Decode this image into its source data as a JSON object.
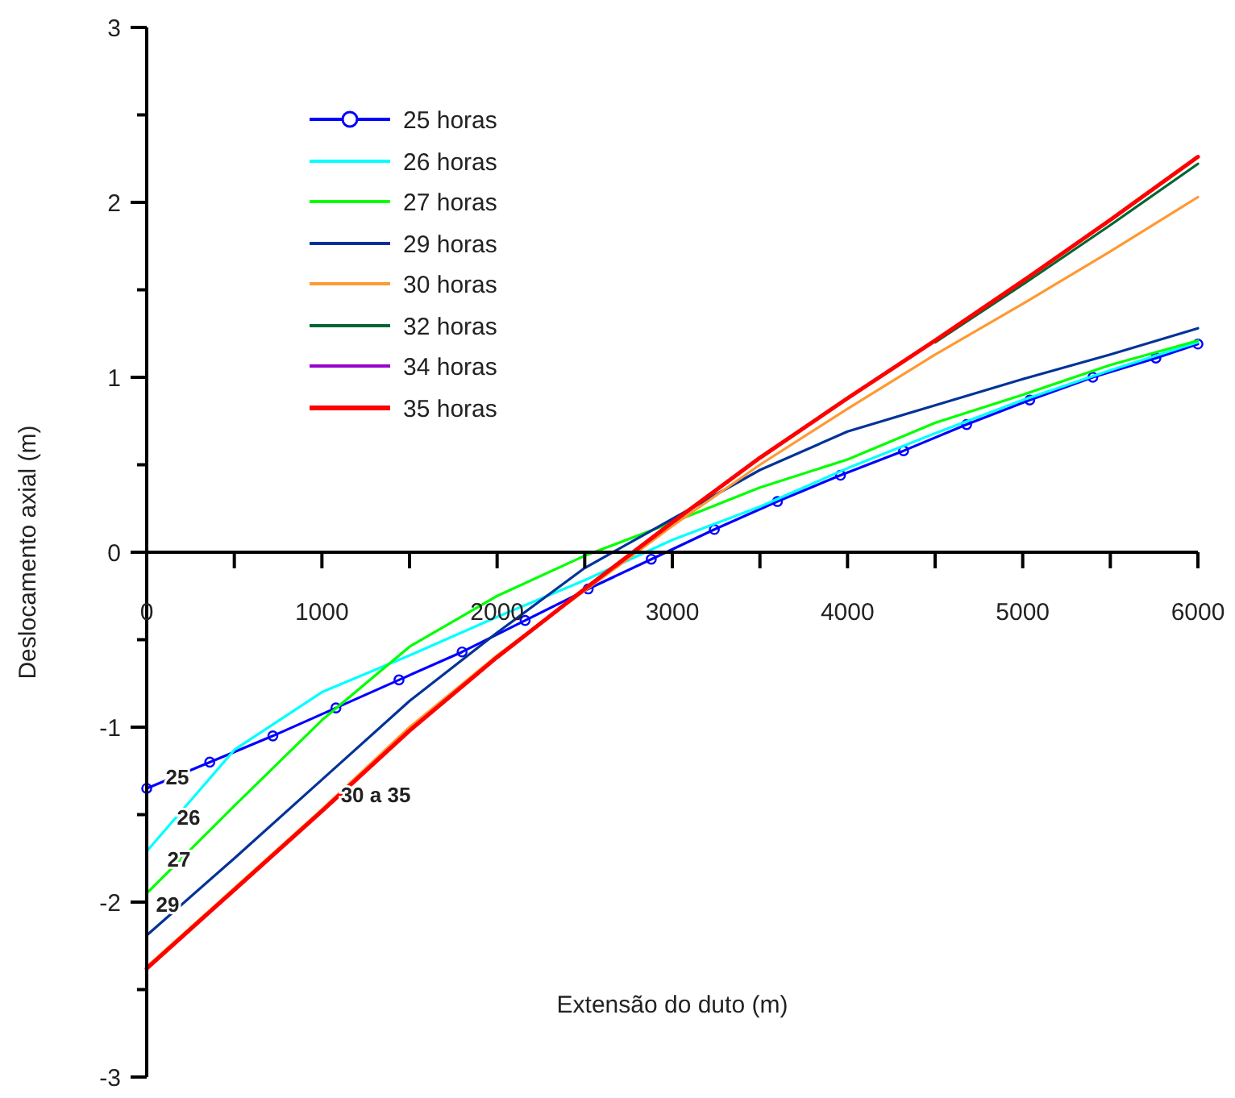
{
  "chart_data": {
    "type": "line",
    "xlabel": "Extensão do duto (m)",
    "ylabel": "Deslocamento axial (m)",
    "xlim": [
      0,
      6000
    ],
    "ylim": [
      -3,
      3
    ],
    "xticks": [
      0,
      {
        "value": 500,
        "label": null
      },
      1000,
      {
        "value": 1500,
        "label": null
      },
      2000,
      {
        "value": 2500,
        "label": null
      },
      3000,
      {
        "value": 3500,
        "label": null
      },
      4000,
      {
        "value": 4500,
        "label": null
      },
      5000,
      {
        "value": 5500,
        "label": null
      },
      6000
    ],
    "yticks": [
      -3,
      {
        "value": -2.5,
        "label": null
      },
      -2,
      {
        "value": -1.5,
        "label": null
      },
      -1,
      {
        "value": -0.5,
        "label": null
      },
      0,
      {
        "value": 0.5,
        "label": null
      },
      1,
      {
        "value": 1.5,
        "label": null
      },
      2,
      {
        "value": 2.5,
        "label": null
      },
      3
    ],
    "grid": false,
    "legend": "top left",
    "line_style": "solid",
    "x": [
      0,
      500,
      1000,
      1500,
      2000,
      2500,
      3000,
      3500,
      4000,
      4500,
      5000,
      5500,
      6000
    ],
    "series": [
      {
        "name": "25 horas",
        "color": "#0000ff",
        "marker": "circle",
        "x": [
          0,
          360,
          720,
          1080,
          1440,
          1800,
          2160,
          2520,
          2880,
          3240,
          3600,
          3960,
          4320,
          4680,
          5040,
          5400,
          5760,
          6000
        ],
        "values": [
          -1.35,
          -1.2,
          -1.05,
          -0.89,
          -0.73,
          -0.57,
          -0.39,
          -0.21,
          -0.04,
          0.13,
          0.29,
          0.44,
          0.58,
          0.73,
          0.87,
          1.0,
          1.11,
          1.19
        ]
      },
      {
        "name": "26 horas",
        "color": "#00ffff",
        "marker": "none",
        "values": [
          -1.71,
          -1.13,
          -0.8,
          -0.59,
          -0.37,
          -0.16,
          0.07,
          0.26,
          0.48,
          0.68,
          0.87,
          1.04,
          1.2
        ]
      },
      {
        "name": "27 horas",
        "color": "#00ff00",
        "marker": "none",
        "values": [
          -1.95,
          -1.45,
          -0.96,
          -0.54,
          -0.25,
          -0.02,
          0.17,
          0.37,
          0.53,
          0.74,
          0.9,
          1.07,
          1.21
        ]
      },
      {
        "name": "29 horas",
        "color": "#003399",
        "marker": "none",
        "values": [
          -2.19,
          -1.75,
          -1.3,
          -0.85,
          -0.46,
          -0.09,
          0.19,
          0.47,
          0.69,
          0.84,
          0.99,
          1.13,
          1.28
        ]
      },
      {
        "name": "30 horas",
        "color": "#ff9933",
        "marker": "none",
        "values": [
          -2.37,
          -1.92,
          -1.47,
          -1.0,
          -0.59,
          -0.22,
          0.15,
          0.5,
          0.82,
          1.13,
          1.42,
          1.72,
          2.03
        ]
      },
      {
        "name": "32 horas",
        "color": "#006633",
        "marker": "none",
        "values": [
          null,
          null,
          null,
          null,
          null,
          null,
          null,
          null,
          null,
          1.2,
          1.53,
          1.87,
          2.22
        ]
      },
      {
        "name": "34 horas",
        "color": "#9900cc",
        "marker": "none",
        "values": [
          null,
          null,
          null,
          null,
          null,
          null,
          null,
          null,
          null,
          null,
          null,
          null,
          null
        ]
      },
      {
        "name": "35 horas",
        "color": "#ff0000",
        "marker": "none",
        "values": [
          -2.38,
          -1.93,
          -1.48,
          -1.02,
          -0.6,
          -0.21,
          0.17,
          0.54,
          0.88,
          1.21,
          1.55,
          1.9,
          2.26
        ]
      }
    ],
    "annotations": [
      "25",
      "26",
      "27",
      "29",
      "30 a 35"
    ]
  }
}
